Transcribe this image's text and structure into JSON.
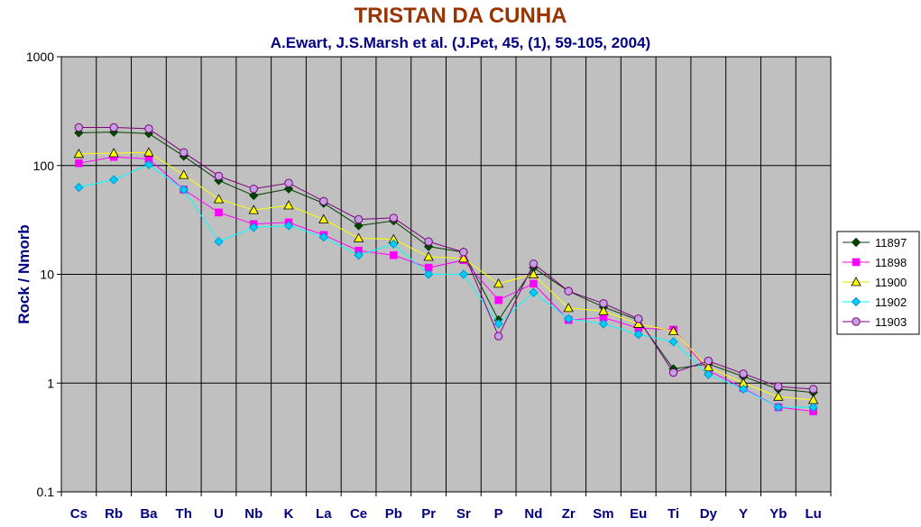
{
  "chart_data": {
    "type": "line",
    "title": "TRISTAN DA CUNHA",
    "subtitle": "A.Ewart, J.S.Marsh et al. (J.Pet, 45, (1), 59-105, 2004)",
    "ylabel": "Rock / Nmorb",
    "xlabel": "",
    "yscale": "log",
    "ylim": [
      0.1,
      1000
    ],
    "yticks": [
      "0.1",
      "1",
      "10",
      "100",
      "1000"
    ],
    "grid": true,
    "legend_position": "right",
    "categories": [
      "Cs",
      "Rb",
      "Ba",
      "Th",
      "U",
      "Nb",
      "K",
      "La",
      "Ce",
      "Pb",
      "Pr",
      "Sr",
      "P",
      "Nd",
      "Zr",
      "Sm",
      "Eu",
      "Ti",
      "Dy",
      "Y",
      "Yb",
      "Lu"
    ],
    "series": [
      {
        "name": "11897",
        "color": "#004000",
        "fill": "#004000",
        "marker": "diamond",
        "values": [
          200,
          203,
          197,
          122,
          73,
          53,
          61,
          45,
          28,
          31,
          18,
          16,
          3.8,
          11.5,
          7,
          5,
          3.8,
          1.35,
          1.5,
          1.15,
          0.88,
          0.82
        ]
      },
      {
        "name": "11898",
        "color": "#ff00ff",
        "fill": "#ff00ff",
        "marker": "square",
        "values": [
          105,
          120,
          115,
          60,
          37,
          29,
          30,
          23,
          16.5,
          15,
          11.5,
          13.5,
          5.8,
          8.2,
          3.8,
          4,
          3.2,
          3.1,
          1.3,
          0.9,
          0.6,
          0.55
        ]
      },
      {
        "name": "11900",
        "color": "#ffff00",
        "fill": "#ffff00",
        "marker": "triangle",
        "values": [
          128,
          130,
          132,
          82,
          49,
          39,
          43,
          32,
          21.5,
          21,
          14.5,
          14,
          8.2,
          10,
          4.9,
          4.6,
          3.5,
          3,
          1.4,
          1,
          0.75,
          0.7
        ]
      },
      {
        "name": "11902",
        "color": "#00ffff",
        "fill": "#00ccff",
        "marker": "diamond",
        "values": [
          63,
          74,
          102,
          60,
          20,
          27,
          28,
          22,
          15,
          19,
          10,
          10,
          3.5,
          6.8,
          3.9,
          3.5,
          2.8,
          2.4,
          1.2,
          0.88,
          0.6,
          0.6
        ]
      },
      {
        "name": "11903",
        "color": "#800080",
        "fill": "#c0a0e0",
        "marker": "circle",
        "values": [
          224,
          224,
          218,
          132,
          80,
          61,
          69,
          47,
          32,
          33,
          20,
          16,
          2.7,
          12.5,
          7,
          5.4,
          3.9,
          1.25,
          1.6,
          1.22,
          0.93,
          0.88
        ]
      }
    ]
  },
  "colors": {
    "title": "#993300",
    "subtitle": "#000080",
    "axis_label": "#000080",
    "plot_background": "#c0c0c0",
    "grid": "#000000"
  }
}
